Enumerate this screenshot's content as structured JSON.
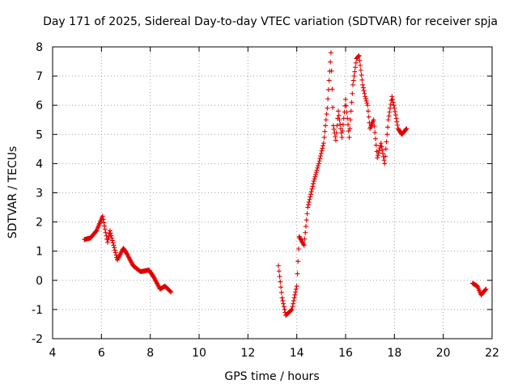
{
  "chart_data": {
    "type": "scatter",
    "title": "Day 171 of 2025, Sidereal Day-to-day VTEC variation (SDTVAR) for receiver spja",
    "xlabel": "GPS time / hours",
    "ylabel": "SDTVAR / TECUs",
    "xlim": [
      4,
      22
    ],
    "ylim": [
      -2,
      8
    ],
    "xticks": [
      4,
      6,
      8,
      10,
      12,
      14,
      16,
      18,
      20,
      22
    ],
    "yticks": [
      -2,
      -1,
      0,
      1,
      2,
      3,
      4,
      5,
      6,
      7,
      8
    ],
    "grid": true,
    "marker": "+",
    "color": "#e00000",
    "series": [
      {
        "name": "SDTVAR",
        "anchors": [
          [
            5.3,
            1.4
          ],
          [
            5.55,
            1.45
          ],
          [
            5.8,
            1.7
          ],
          [
            6.05,
            2.2
          ],
          [
            6.25,
            1.3
          ],
          [
            6.35,
            1.7
          ],
          [
            6.65,
            0.7
          ],
          [
            6.9,
            1.1
          ],
          [
            7.05,
            0.9
          ],
          [
            7.3,
            0.5
          ],
          [
            7.6,
            0.3
          ],
          [
            7.95,
            0.35
          ],
          [
            8.15,
            0.1
          ],
          [
            8.4,
            -0.3
          ],
          [
            8.6,
            -0.2
          ],
          [
            8.85,
            -0.4
          ],
          [
            13.25,
            0.5
          ],
          [
            13.4,
            -0.6
          ],
          [
            13.55,
            -1.2
          ],
          [
            13.8,
            -1.0
          ],
          [
            14.0,
            -0.2
          ],
          [
            14.1,
            1.5
          ],
          [
            14.3,
            1.2
          ],
          [
            14.45,
            2.5
          ],
          [
            14.7,
            3.4
          ],
          [
            14.9,
            4.0
          ],
          [
            15.1,
            4.7
          ],
          [
            15.25,
            5.9
          ],
          [
            15.4,
            7.8
          ],
          [
            15.5,
            5.3
          ],
          [
            15.6,
            4.8
          ],
          [
            15.7,
            5.8
          ],
          [
            15.85,
            4.9
          ],
          [
            16.0,
            6.2
          ],
          [
            16.15,
            4.9
          ],
          [
            16.3,
            6.7
          ],
          [
            16.45,
            7.6
          ],
          [
            16.55,
            7.7
          ],
          [
            16.7,
            6.7
          ],
          [
            16.8,
            6.3
          ],
          [
            16.9,
            6.0
          ],
          [
            17.0,
            5.2
          ],
          [
            17.15,
            5.5
          ],
          [
            17.3,
            4.2
          ],
          [
            17.45,
            4.7
          ],
          [
            17.6,
            4.0
          ],
          [
            17.75,
            5.5
          ],
          [
            17.9,
            6.3
          ],
          [
            18.0,
            5.9
          ],
          [
            18.15,
            5.2
          ],
          [
            18.3,
            5.0
          ],
          [
            18.5,
            5.2
          ],
          [
            21.2,
            -0.1
          ],
          [
            21.4,
            -0.2
          ],
          [
            21.55,
            -0.5
          ],
          [
            21.65,
            -0.4
          ],
          [
            21.75,
            -0.3
          ]
        ]
      }
    ]
  }
}
